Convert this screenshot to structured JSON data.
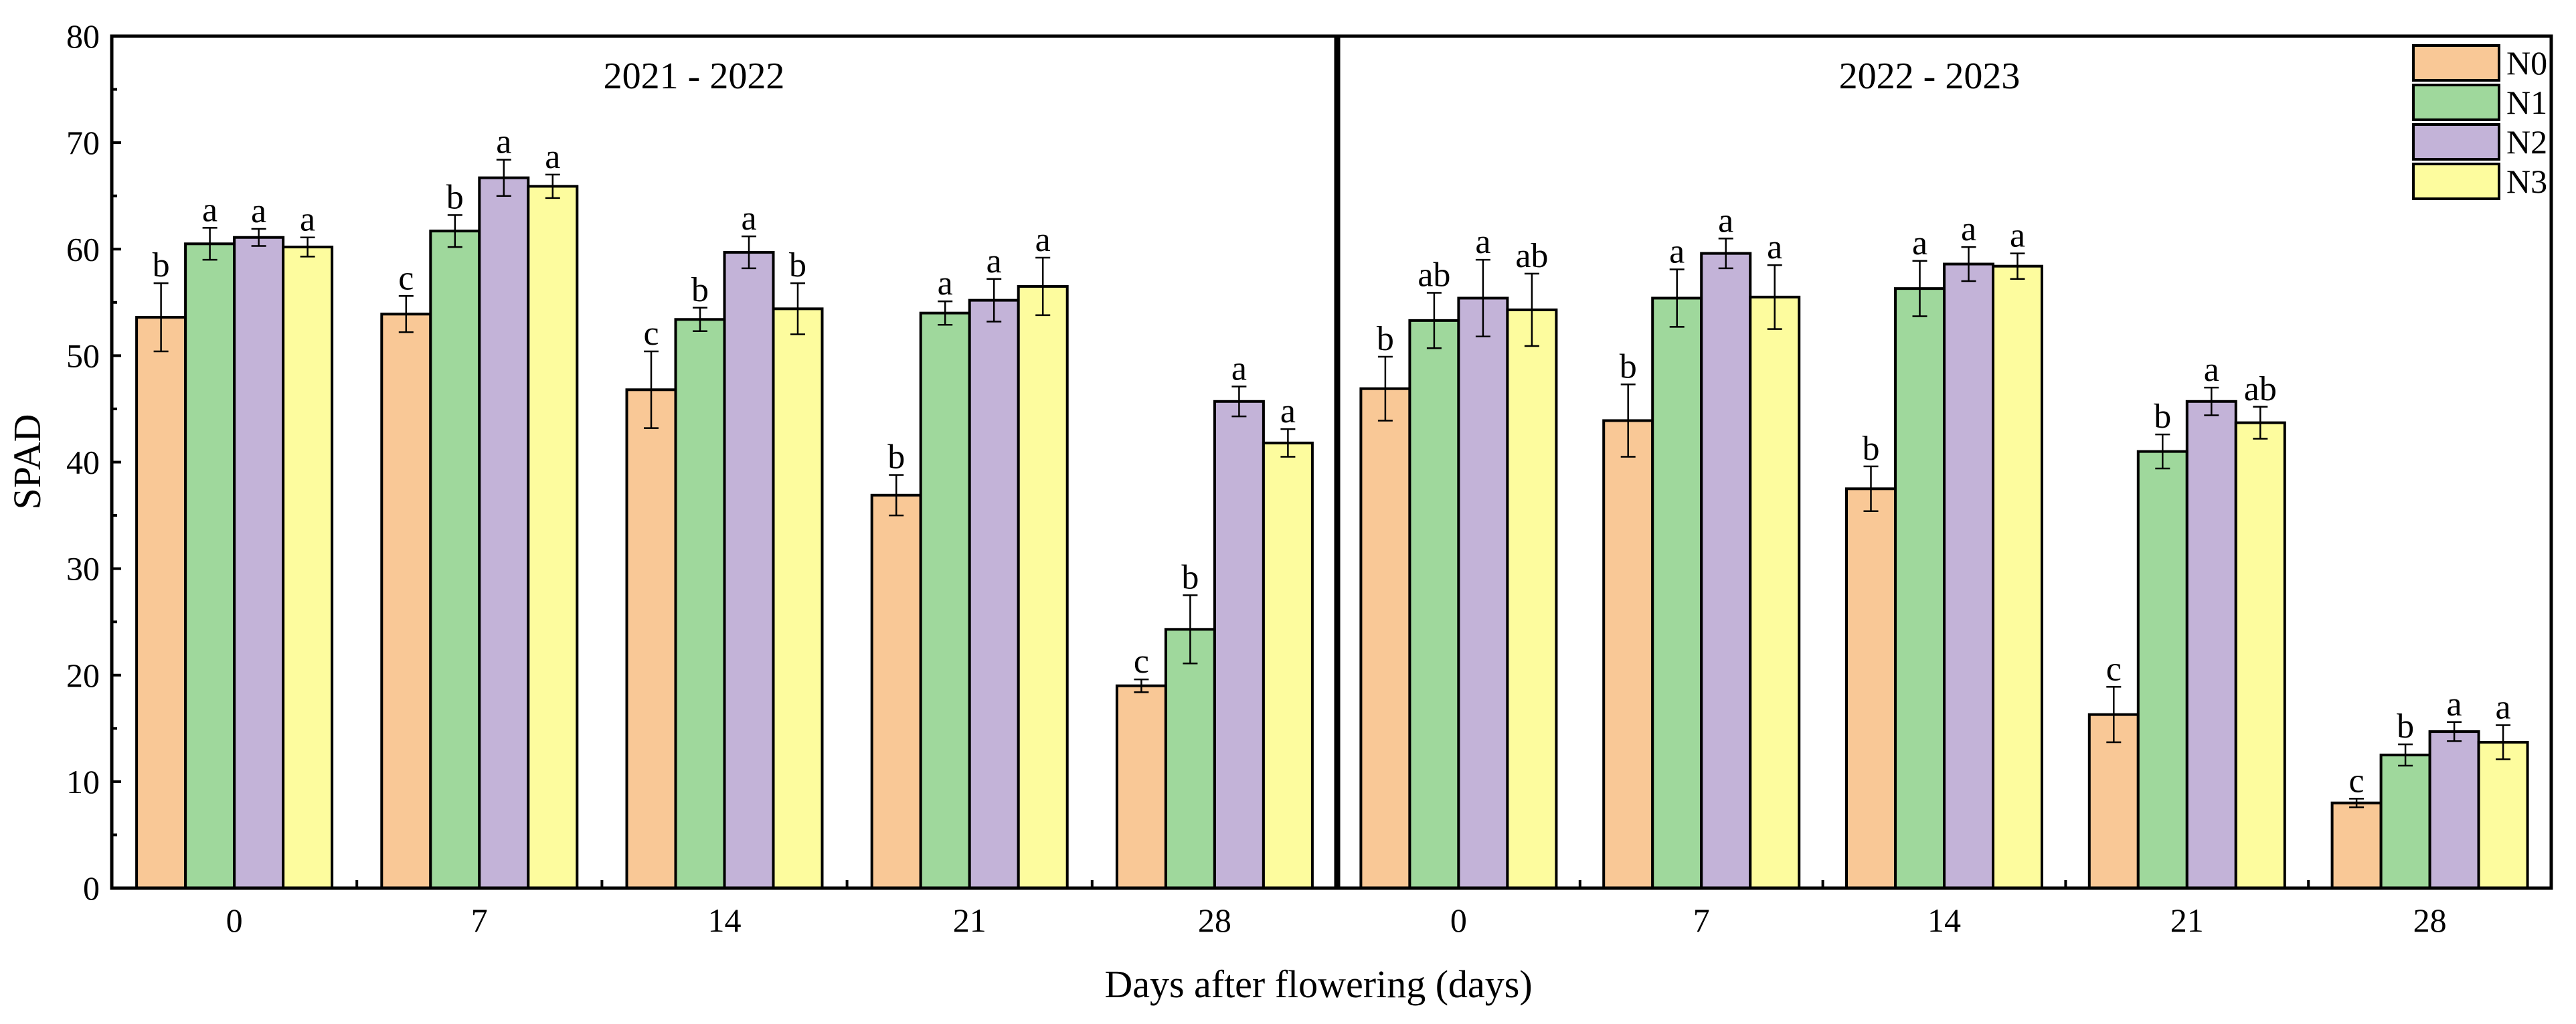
{
  "chart_data": {
    "type": "bar",
    "ylabel": "SPAD",
    "xlabel": "Days after flowering (days)",
    "ylim": [
      0,
      80
    ],
    "yticks": [
      "0",
      "10",
      "20",
      "30",
      "40",
      "50",
      "60",
      "70",
      "80"
    ],
    "grid": false,
    "legend_position": "top-right",
    "categories": [
      "0",
      "7",
      "14",
      "21",
      "28"
    ],
    "series_names": [
      "N0",
      "N1",
      "N2",
      "N3"
    ],
    "colors": [
      "#f9c896",
      "#9fd89c",
      "#c3b3d8",
      "#fdfc9e"
    ],
    "panels": [
      {
        "title": "2021 - 2022",
        "series": [
          {
            "name": "N0",
            "values": [
              53.6,
              53.9,
              46.8,
              36.9,
              19.0
            ],
            "errors": [
              3.2,
              1.7,
              3.6,
              1.9,
              0.6
            ],
            "letters": [
              "b",
              "c",
              "c",
              "b",
              "c"
            ]
          },
          {
            "name": "N1",
            "values": [
              60.5,
              61.7,
              53.4,
              54.0,
              24.3
            ],
            "errors": [
              1.5,
              1.5,
              1.1,
              1.1,
              3.2
            ],
            "letters": [
              "a",
              "b",
              "b",
              "a",
              "b"
            ]
          },
          {
            "name": "N2",
            "values": [
              61.1,
              66.7,
              59.7,
              55.2,
              45.7
            ],
            "errors": [
              0.8,
              1.7,
              1.5,
              2.0,
              1.4
            ],
            "letters": [
              "a",
              "a",
              "a",
              "a",
              "a"
            ]
          },
          {
            "name": "N3",
            "values": [
              60.2,
              65.9,
              54.4,
              56.5,
              41.8
            ],
            "errors": [
              0.9,
              1.1,
              2.4,
              2.7,
              1.3
            ],
            "letters": [
              "a",
              "a",
              "b",
              "a",
              "a"
            ]
          }
        ]
      },
      {
        "title": "2022 - 2023",
        "series": [
          {
            "name": "N0",
            "values": [
              46.9,
              43.9,
              37.5,
              16.3,
              8.0
            ],
            "errors": [
              3.0,
              3.4,
              2.1,
              2.6,
              0.4
            ],
            "letters": [
              "b",
              "b",
              "b",
              "c",
              "c"
            ]
          },
          {
            "name": "N1",
            "values": [
              53.3,
              55.4,
              56.3,
              41.0,
              12.5
            ],
            "errors": [
              2.6,
              2.7,
              2.6,
              1.6,
              1.0
            ],
            "letters": [
              "ab",
              "a",
              "a",
              "b",
              "b"
            ]
          },
          {
            "name": "N2",
            "values": [
              55.4,
              59.6,
              58.6,
              45.7,
              14.7
            ],
            "errors": [
              3.6,
              1.4,
              1.6,
              1.3,
              0.9
            ],
            "letters": [
              "a",
              "a",
              "a",
              "a",
              "a"
            ]
          },
          {
            "name": "N3",
            "values": [
              54.3,
              55.5,
              58.4,
              43.7,
              13.7
            ],
            "errors": [
              3.4,
              3.0,
              1.2,
              1.5,
              1.6
            ],
            "letters": [
              "ab",
              "a",
              "a",
              "ab",
              "a"
            ]
          }
        ]
      }
    ]
  }
}
